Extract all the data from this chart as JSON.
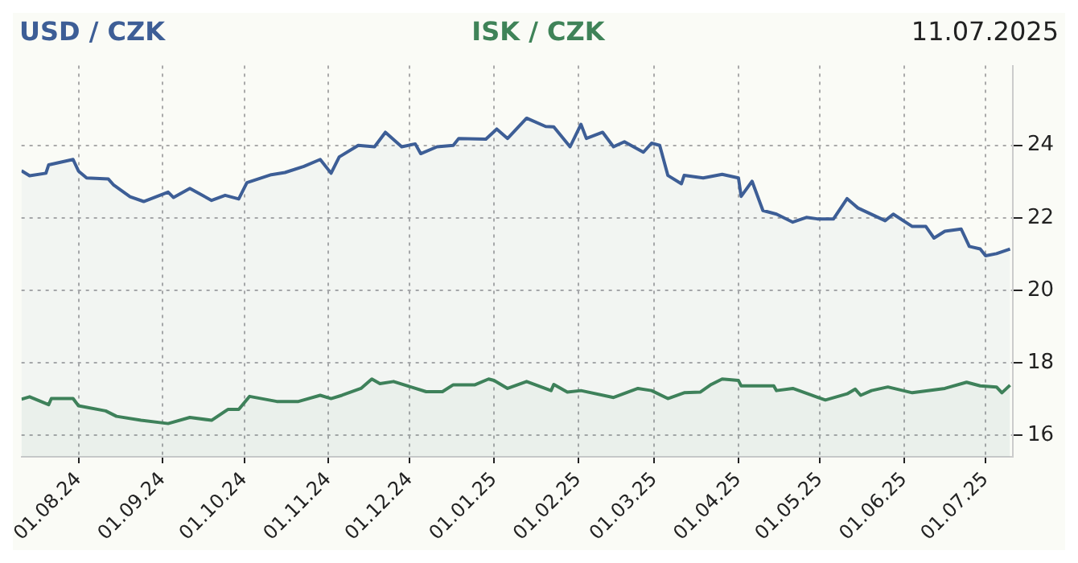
{
  "chart_data": {
    "type": "area",
    "title": "11.07.2025",
    "legend": "top",
    "grid": true,
    "line_style": "solid",
    "marker": "none",
    "xlim": [
      "2024-07-11",
      "2025-07-11"
    ],
    "xticks": [
      {
        "value": "2024-08-01",
        "label": "01.08.24"
      },
      {
        "value": "2024-09-01",
        "label": "01.09.24"
      },
      {
        "value": "2024-10-01",
        "label": "01.10.24"
      },
      {
        "value": "2024-11-01",
        "label": "01.11.24"
      },
      {
        "value": "2024-12-01",
        "label": "01.12.24"
      },
      {
        "value": "2025-01-01",
        "label": "01.01.25"
      },
      {
        "value": "2025-02-01",
        "label": "01.02.25"
      },
      {
        "value": "2025-03-01",
        "label": "01.03.25"
      },
      {
        "value": "2025-04-01",
        "label": "01.04.25"
      },
      {
        "value": "2025-05-01",
        "label": "01.05.25"
      },
      {
        "value": "2025-06-01",
        "label": "01.06.25"
      },
      {
        "value": "2025-07-01",
        "label": "01.07.25"
      }
    ],
    "ylim": [
      15.4,
      26.2
    ],
    "yticks": [
      16,
      18,
      20,
      22,
      24
    ],
    "series": [
      {
        "name": "USD / CZK",
        "color": "#3d5e96",
        "x": [
          "2024-07-11",
          "2024-07-14",
          "2024-07-20",
          "2024-07-21",
          "2024-07-30",
          "2024-08-01",
          "2024-08-04",
          "2024-08-12",
          "2024-08-14",
          "2024-08-20",
          "2024-08-25",
          "2024-09-03",
          "2024-09-05",
          "2024-09-11",
          "2024-09-19",
          "2024-09-24",
          "2024-09-29",
          "2024-10-02",
          "2024-10-11",
          "2024-10-16",
          "2024-10-23",
          "2024-10-29",
          "2024-11-02",
          "2024-11-05",
          "2024-11-12",
          "2024-11-18",
          "2024-11-22",
          "2024-11-28",
          "2024-12-03",
          "2024-12-05",
          "2024-12-11",
          "2024-12-17",
          "2024-12-19",
          "2024-12-29",
          "2025-01-02",
          "2025-01-06",
          "2025-01-13",
          "2025-01-20",
          "2025-01-23",
          "2025-01-29",
          "2025-02-02",
          "2025-02-04",
          "2025-02-10",
          "2025-02-14",
          "2025-02-18",
          "2025-02-25",
          "2025-02-28",
          "2025-03-03",
          "2025-03-06",
          "2025-03-11",
          "2025-03-12",
          "2025-03-19",
          "2025-03-26",
          "2025-04-01",
          "2025-04-02",
          "2025-04-06",
          "2025-04-10",
          "2025-04-15",
          "2025-04-21",
          "2025-04-26",
          "2025-04-30",
          "2025-05-06",
          "2025-05-11",
          "2025-05-15",
          "2025-05-25",
          "2025-05-28",
          "2025-06-04",
          "2025-06-09",
          "2025-06-12",
          "2025-06-16",
          "2025-06-22",
          "2025-06-25",
          "2025-06-29",
          "2025-07-01",
          "2025-07-05",
          "2025-07-10"
        ],
        "values": [
          23.3,
          23.16,
          23.23,
          23.46,
          23.61,
          23.29,
          23.1,
          23.07,
          22.9,
          22.58,
          22.45,
          22.71,
          22.56,
          22.81,
          22.48,
          22.62,
          22.52,
          22.97,
          23.19,
          23.25,
          23.42,
          23.61,
          23.23,
          23.68,
          24.0,
          23.96,
          24.36,
          23.96,
          24.04,
          23.77,
          23.96,
          24.0,
          24.19,
          24.17,
          24.45,
          24.19,
          24.75,
          24.52,
          24.51,
          23.96,
          24.58,
          24.19,
          24.36,
          23.96,
          24.1,
          23.81,
          24.06,
          24.0,
          23.17,
          22.94,
          23.17,
          23.1,
          23.2,
          23.1,
          22.59,
          23.01,
          22.2,
          22.1,
          21.88,
          22.01,
          21.97,
          21.97,
          22.53,
          22.27,
          21.92,
          22.1,
          21.76,
          21.76,
          21.44,
          21.63,
          21.69,
          21.21,
          21.14,
          20.95,
          21.01,
          21.14
        ]
      },
      {
        "name": "ISK / CZK",
        "color": "#3f8358",
        "x": [
          "2024-07-11",
          "2024-07-14",
          "2024-07-21",
          "2024-07-22",
          "2024-07-30",
          "2024-08-01",
          "2024-08-11",
          "2024-08-15",
          "2024-08-24",
          "2024-09-03",
          "2024-09-11",
          "2024-09-19",
          "2024-09-25",
          "2024-09-29",
          "2024-10-03",
          "2024-10-13",
          "2024-10-21",
          "2024-10-29",
          "2024-11-02",
          "2024-11-06",
          "2024-11-13",
          "2024-11-17",
          "2024-11-20",
          "2024-11-25",
          "2024-12-07",
          "2024-12-13",
          "2024-12-17",
          "2024-12-25",
          "2024-12-30",
          "2025-01-01",
          "2025-01-06",
          "2025-01-13",
          "2025-01-22",
          "2025-01-23",
          "2025-01-28",
          "2025-02-02",
          "2025-02-14",
          "2025-02-23",
          "2025-02-28",
          "2025-03-06",
          "2025-03-12",
          "2025-03-18",
          "2025-03-22",
          "2025-03-26",
          "2025-04-01",
          "2025-04-02",
          "2025-04-14",
          "2025-04-15",
          "2025-04-21",
          "2025-04-28",
          "2025-05-03",
          "2025-05-11",
          "2025-05-14",
          "2025-05-16",
          "2025-05-20",
          "2025-05-26",
          "2025-06-04",
          "2025-06-16",
          "2025-06-24",
          "2025-06-29",
          "2025-07-05",
          "2025-07-07",
          "2025-07-10"
        ],
        "values": [
          16.99,
          17.06,
          16.84,
          17.01,
          17.01,
          16.81,
          16.67,
          16.52,
          16.41,
          16.32,
          16.49,
          16.41,
          16.71,
          16.71,
          17.07,
          16.93,
          16.93,
          17.1,
          17.01,
          17.1,
          17.29,
          17.55,
          17.42,
          17.48,
          17.2,
          17.2,
          17.39,
          17.39,
          17.55,
          17.51,
          17.29,
          17.48,
          17.23,
          17.4,
          17.19,
          17.23,
          17.04,
          17.29,
          17.23,
          17.01,
          17.17,
          17.19,
          17.4,
          17.55,
          17.51,
          17.36,
          17.36,
          17.23,
          17.29,
          17.1,
          16.97,
          17.14,
          17.27,
          17.1,
          17.23,
          17.33,
          17.17,
          17.29,
          17.46,
          17.36,
          17.33,
          17.17,
          17.38
        ]
      }
    ]
  }
}
